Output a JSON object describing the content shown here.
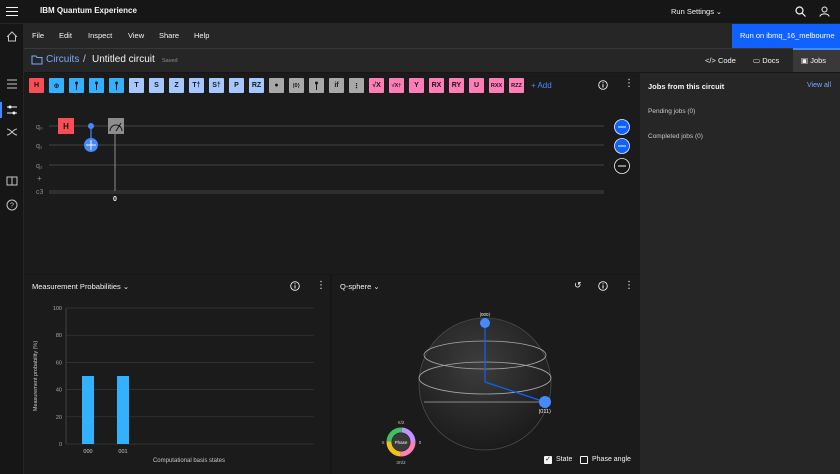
{
  "app": {
    "title": "IBM Quantum Experience"
  },
  "menu": {
    "items": [
      "File",
      "Edit",
      "Inspect",
      "View",
      "Share",
      "Help"
    ],
    "run_settings": "Run Settings",
    "run_button": "Run on ibmq_16_melbourne"
  },
  "breadcrumb": {
    "root": "Circuits",
    "separator": "/",
    "title": "Untitled circuit",
    "status": "Saved"
  },
  "tabs": [
    {
      "label": "Code"
    },
    {
      "label": "Docs"
    },
    {
      "label": "Jobs"
    }
  ],
  "gates": [
    "H",
    "⊕",
    "",
    "",
    "",
    "T",
    "S",
    "Z",
    "T†",
    "S†",
    "P",
    "RZ",
    "●",
    "|0⟩",
    "",
    "if",
    "⋮",
    "√X",
    "√X†",
    "Y",
    "RX",
    "RY",
    "U",
    "RXX",
    "RZZ"
  ],
  "add_label": "+ Add",
  "circuit": {
    "qubits": [
      "q₀",
      "q₁",
      "q₂",
      "+",
      "c3"
    ],
    "classical_index": "0",
    "placed_gate": "H"
  },
  "probabilities": {
    "title": "Measurement Probabilities",
    "chart_data": {
      "type": "bar",
      "categories": [
        "000",
        "001"
      ],
      "values": [
        50,
        50
      ],
      "xlabel": "Computational basis states",
      "ylabel": "Measurement probability (%)",
      "ylim": [
        0,
        100
      ],
      "yticks": [
        "100",
        "80",
        "60",
        "40",
        "20",
        "0"
      ],
      "color": "#33b1ff"
    }
  },
  "qsphere": {
    "title": "Q-sphere",
    "states": [
      "|000⟩",
      "|011⟩"
    ],
    "phase": {
      "label": "Phase",
      "top": "π/2",
      "left": "π",
      "right": "0",
      "bottom": "3π/2"
    },
    "state_label": "State",
    "phase_angle_label": "Phase angle"
  },
  "jobs": {
    "title": "Jobs from this circuit",
    "view_all": "View all",
    "pending": "Pending jobs (0)",
    "completed": "Completed jobs (0)"
  }
}
